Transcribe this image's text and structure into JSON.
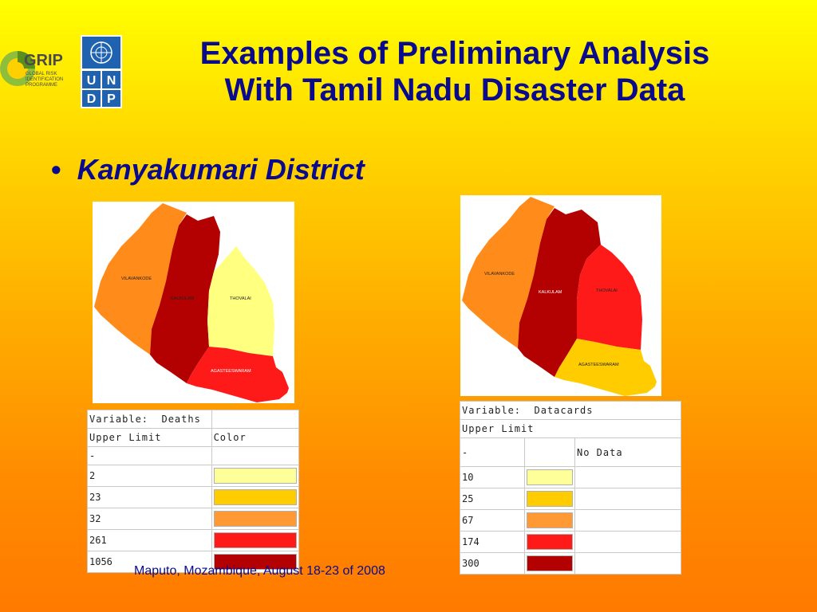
{
  "title": {
    "line1": "Examples of Preliminary Analysis",
    "line2": "With Tamil Nadu Disaster Data"
  },
  "bullet": {
    "marker": "•",
    "text": "Kanyakumari District"
  },
  "logos": {
    "grip": {
      "text": "GRIP",
      "sub1": "GLOBAL RISK",
      "sub2": "IDENTIFICATION",
      "sub3": "PROGRAMME"
    },
    "undp": {
      "letters": [
        "U",
        "N",
        "D",
        "P"
      ]
    }
  },
  "map_left": {
    "regions": {
      "vilavancode": {
        "label": "VILAVANKODE",
        "color": "#ff8c1a"
      },
      "kalkulam": {
        "label": "KALKULAM",
        "color": "#b30000"
      },
      "thovalai": {
        "label": "THOVALAI",
        "color": "#ffff80"
      },
      "agasteeswaram": {
        "label": "AGASTEESWARAM",
        "color": "#ff1a1a"
      }
    }
  },
  "map_right": {
    "regions": {
      "vilavancode": {
        "label": "VILAVANKODE",
        "color": "#ff8c1a"
      },
      "kalkulam": {
        "label": "KALKULAM",
        "color": "#b30000"
      },
      "thovalai": {
        "label": "THOVALAI",
        "color": "#ff1a1a"
      },
      "agasteeswaram": {
        "label": "AGASTEESWARAM",
        "color": "#ffcc00"
      }
    }
  },
  "legend_left": {
    "variable_label": "Variable:",
    "variable_value": "Deaths",
    "upper_limit_header": "Upper Limit",
    "color_header": "Color",
    "dash_row": "-",
    "rows": [
      {
        "limit": "2",
        "color": "#ffff99"
      },
      {
        "limit": "23",
        "color": "#ffcc00"
      },
      {
        "limit": "32",
        "color": "#ff9933"
      },
      {
        "limit": "261",
        "color": "#ff1a1a"
      },
      {
        "limit": "1056",
        "color": "#b30000"
      }
    ]
  },
  "legend_right": {
    "variable_label": "Variable:",
    "variable_value": "Datacards",
    "upper_limit_header": "Upper Limit",
    "dash_row": "-",
    "no_data": "No Data",
    "rows": [
      {
        "limit": "10",
        "color": "#ffff99"
      },
      {
        "limit": "25",
        "color": "#ffcc00"
      },
      {
        "limit": "67",
        "color": "#ff9933"
      },
      {
        "limit": "174",
        "color": "#ff1a1a"
      },
      {
        "limit": "300",
        "color": "#b30000"
      }
    ]
  },
  "footer": "Maputo, Mozambique, August 18-23 of 2008"
}
